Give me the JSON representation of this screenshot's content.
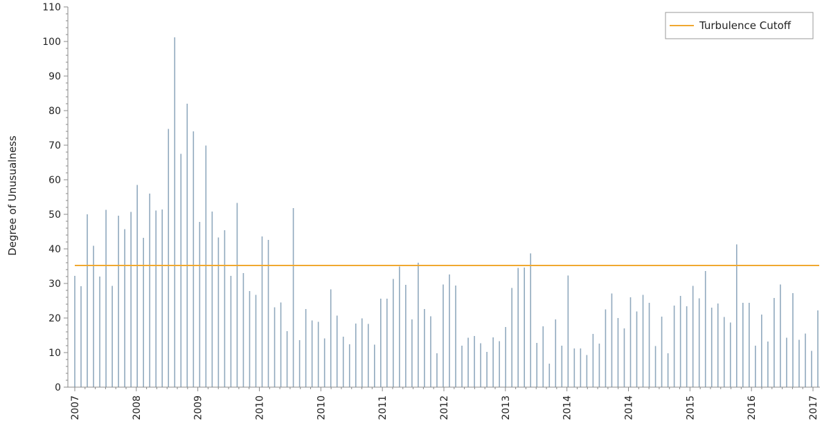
{
  "chart_data": {
    "type": "bar",
    "ylabel": "Degree of Unusualness",
    "ylim": [
      0,
      110
    ],
    "yticks": [
      0,
      10,
      20,
      30,
      40,
      50,
      60,
      70,
      80,
      90,
      100,
      110
    ],
    "x_tick_labels": [
      "2007",
      "2008",
      "2009",
      "2010",
      "2010",
      "2011",
      "2012",
      "2013",
      "2014",
      "2014",
      "2015",
      "2016",
      "2017"
    ],
    "cutoff": {
      "name": "Turbulence Cutoff",
      "value": 35.2
    },
    "legend_position": "top-right",
    "grid": false,
    "colors": {
      "bars": "#8fa8bd",
      "cutoff": "#f0a830",
      "axis": "#888888"
    },
    "series": [
      {
        "values": [
          32.2,
          29.2,
          50,
          40.9,
          32,
          51.3,
          29.3,
          49.6,
          45.7,
          50.7,
          58.5,
          43.2,
          56,
          51.1,
          51.4,
          74.7,
          101.2,
          67.5,
          82,
          74,
          47.8,
          69.9,
          50.8,
          43.3,
          45.4,
          32.2,
          53.3,
          33,
          27.8,
          26.7,
          43.6,
          42.6,
          23.1,
          24.5,
          16.2,
          51.8,
          13.6,
          22.6,
          19.3,
          18.9,
          14.1,
          28.3,
          20.7,
          14.6,
          12.4,
          18.4,
          19.9,
          18.3,
          12.3,
          25.6,
          25.6,
          31.3,
          34.9,
          29.6,
          19.6,
          36,
          22.6,
          20.5,
          9.8,
          29.7,
          32.6,
          29.4,
          12,
          14.3,
          14.8,
          12.7,
          10.2,
          14.4,
          13.3,
          17.4,
          28.7,
          34.5,
          34.6,
          38.7,
          12.8,
          17.6,
          6.8,
          19.6,
          12,
          32.3,
          11.2,
          11.2,
          9.3,
          15.4,
          12.6,
          22.5,
          27.1,
          20,
          17,
          26,
          21.9,
          26.7,
          24.4,
          11.9,
          20.4,
          9.8,
          23.6,
          26.4,
          23.4,
          29.3,
          25.7,
          33.6,
          23,
          24.2,
          20.3,
          18.7,
          41.3,
          24.4,
          24.4,
          12,
          21,
          13.2,
          25.8,
          29.7,
          14.3,
          27.2,
          13.7,
          15.5,
          10.5,
          22.2
        ]
      }
    ]
  }
}
